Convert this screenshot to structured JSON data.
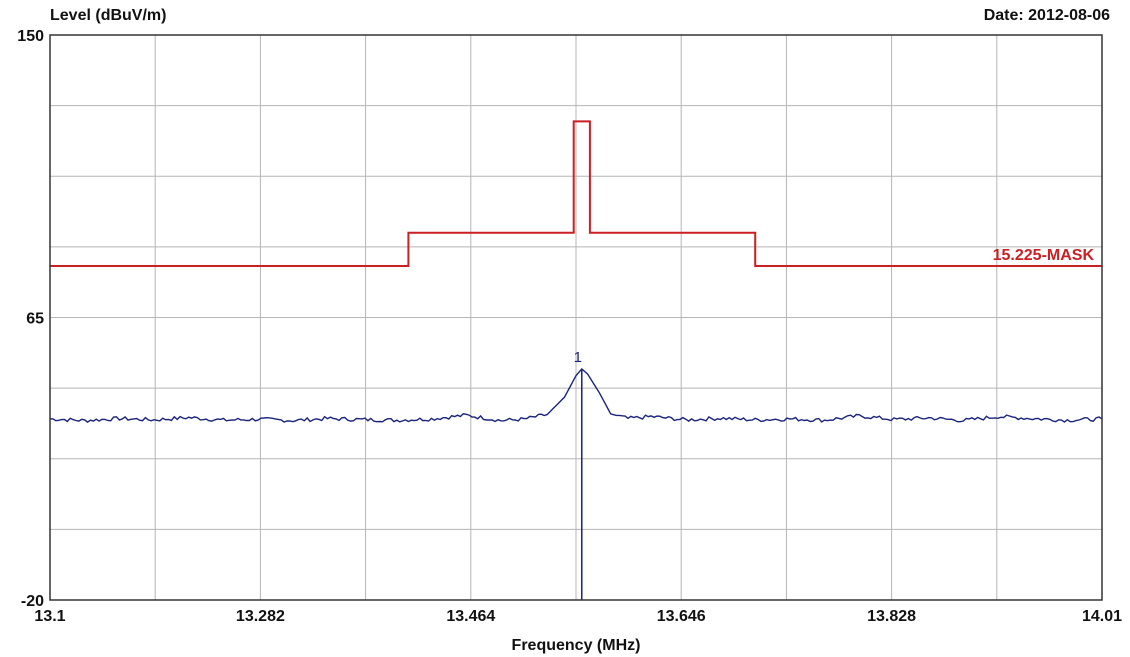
{
  "chart_data": {
    "type": "line",
    "ylabel": "Level (dBuV/m)",
    "xlabel": "Frequency (MHz)",
    "date_label": "Date: 2012-08-06",
    "xlim": [
      13.1,
      14.01
    ],
    "ylim": [
      -20,
      150
    ],
    "x_ticks": [
      13.1,
      13.282,
      13.464,
      13.646,
      13.828,
      14.01
    ],
    "x_tick_labels": [
      "13.1",
      "13.282",
      "13.464",
      "13.646",
      "13.828",
      "14.01"
    ],
    "y_tick_labels": [
      "150",
      "65",
      "-20"
    ],
    "y_ticks": [
      150,
      65,
      -20
    ],
    "grid": true,
    "x_grid_divisions": 10,
    "y_grid_divisions": 8,
    "series": [
      {
        "name": "15.225-MASK",
        "color": "#cc1f24",
        "type": "step",
        "points": [
          [
            13.1,
            80.5
          ],
          [
            13.41,
            80.5
          ],
          [
            13.41,
            90.5
          ],
          [
            13.553,
            90.5
          ],
          [
            13.553,
            124.0
          ],
          [
            13.567,
            124.0
          ],
          [
            13.567,
            90.5
          ],
          [
            13.71,
            90.5
          ],
          [
            13.71,
            80.5
          ],
          [
            14.01,
            80.5
          ]
        ]
      },
      {
        "color": "#1a237e",
        "type": "line",
        "baseline": 34.5,
        "peak": {
          "x": 13.56,
          "y": 49.5
        },
        "points": [
          [
            13.1,
            34.5
          ],
          [
            13.13,
            34.0
          ],
          [
            13.16,
            34.6
          ],
          [
            13.19,
            34.2
          ],
          [
            13.22,
            34.9
          ],
          [
            13.25,
            34.1
          ],
          [
            13.28,
            34.4
          ],
          [
            13.31,
            34.0
          ],
          [
            13.34,
            34.6
          ],
          [
            13.37,
            34.3
          ],
          [
            13.4,
            34.1
          ],
          [
            13.43,
            34.5
          ],
          [
            13.46,
            35.6
          ],
          [
            13.49,
            34.0
          ],
          [
            13.51,
            34.4
          ],
          [
            13.53,
            35.8
          ],
          [
            13.545,
            41.0
          ],
          [
            13.555,
            47.5
          ],
          [
            13.56,
            49.5
          ],
          [
            13.565,
            48.0
          ],
          [
            13.575,
            42.5
          ],
          [
            13.585,
            36.0
          ],
          [
            13.6,
            34.6
          ],
          [
            13.62,
            35.2
          ],
          [
            13.65,
            34.2
          ],
          [
            13.68,
            34.7
          ],
          [
            13.71,
            34.2
          ],
          [
            13.74,
            34.5
          ],
          [
            13.77,
            34.1
          ],
          [
            13.8,
            35.4
          ],
          [
            13.83,
            34.3
          ],
          [
            13.86,
            34.8
          ],
          [
            13.89,
            34.0
          ],
          [
            13.92,
            35.2
          ],
          [
            13.95,
            34.6
          ],
          [
            13.98,
            34.1
          ],
          [
            14.01,
            34.5
          ]
        ]
      }
    ],
    "markers": [
      {
        "label": "1",
        "x": 13.56,
        "y": 49.5,
        "color": "#1a237e"
      }
    ]
  }
}
